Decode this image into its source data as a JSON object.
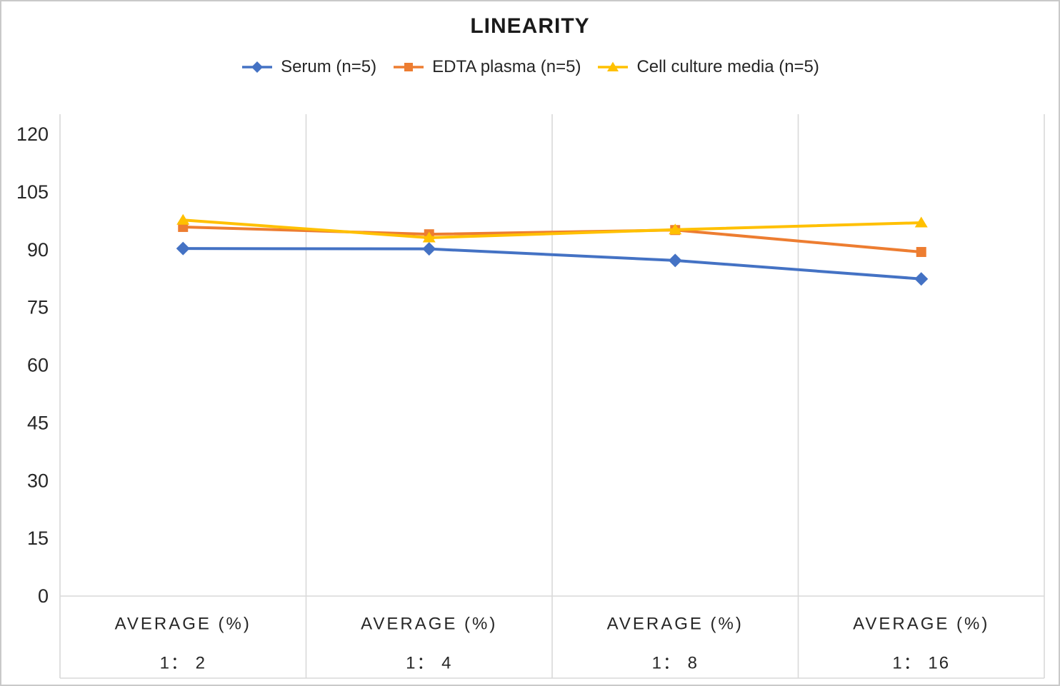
{
  "chart_data": {
    "type": "line",
    "title": "LINEARITY",
    "categories": [
      {
        "top": "AVERAGE (%)",
        "bottom": "1： 2"
      },
      {
        "top": "AVERAGE (%)",
        "bottom": "1： 4"
      },
      {
        "top": "AVERAGE (%)",
        "bottom": "1： 8"
      },
      {
        "top": "AVERAGE (%)",
        "bottom": "1： 16"
      }
    ],
    "series": [
      {
        "name": "Serum (n=5)",
        "color": "#4472C4",
        "marker": "diamond",
        "values": [
          90.3,
          90.2,
          87.2,
          82.4
        ]
      },
      {
        "name": "EDTA plasma (n=5)",
        "color": "#ED7D31",
        "marker": "square",
        "values": [
          95.9,
          94.0,
          95.1,
          89.4
        ]
      },
      {
        "name": "Cell culture media (n=5)",
        "color": "#FFC000",
        "marker": "triangle",
        "values": [
          97.7,
          93.1,
          95.2,
          97.0
        ]
      }
    ],
    "y_ticks": [
      0,
      15,
      30,
      45,
      60,
      75,
      90,
      105,
      120
    ],
    "ylim": [
      0,
      120
    ],
    "grid": "vertical-only",
    "legend_position": "top",
    "axis_color": "#d9d9d9",
    "text_color": "#262626"
  }
}
